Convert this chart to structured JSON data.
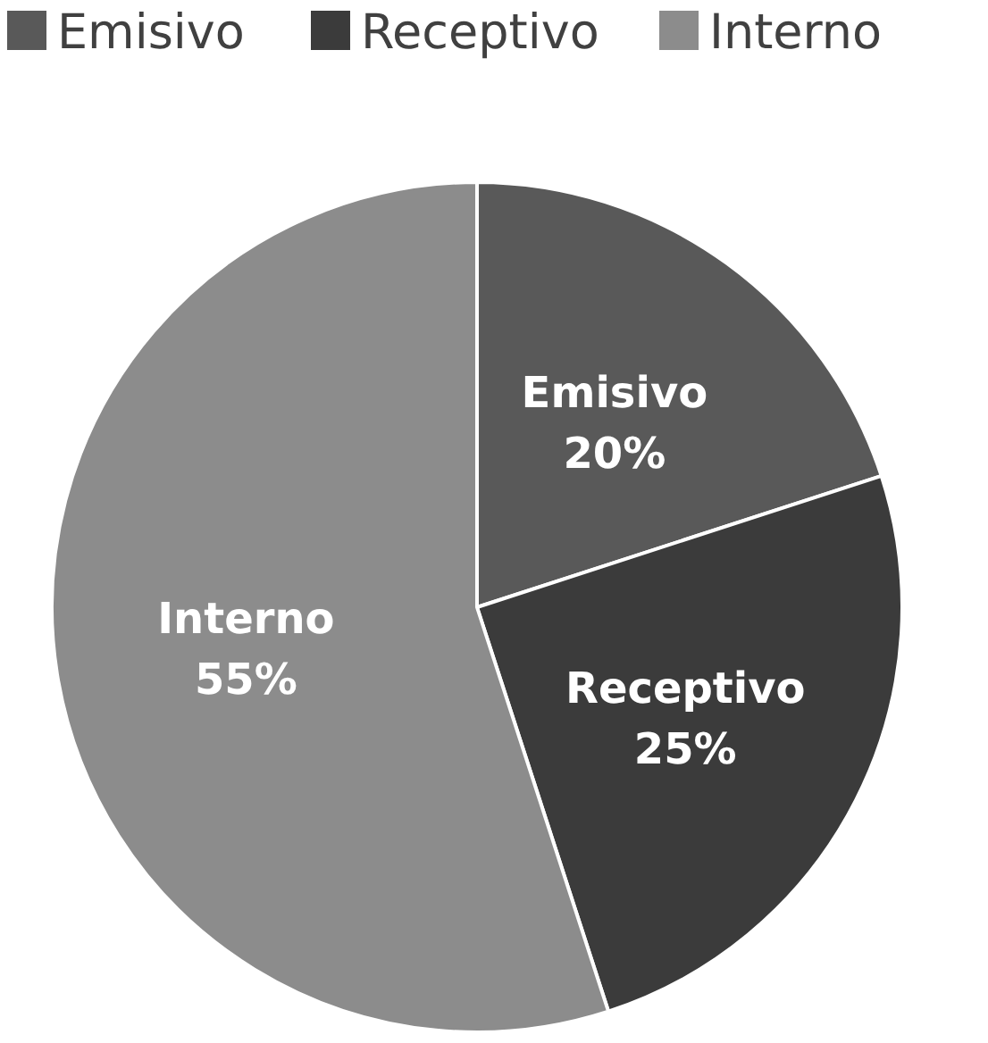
{
  "chart_data": {
    "type": "pie",
    "categories": [
      "Emisivo",
      "Receptivo",
      "Interno"
    ],
    "values": [
      20,
      25,
      55
    ],
    "colors": [
      "#595959",
      "#3b3b3b",
      "#8c8c8c"
    ],
    "value_labels": [
      "20%",
      "25%",
      "55%"
    ],
    "legend": "top"
  }
}
